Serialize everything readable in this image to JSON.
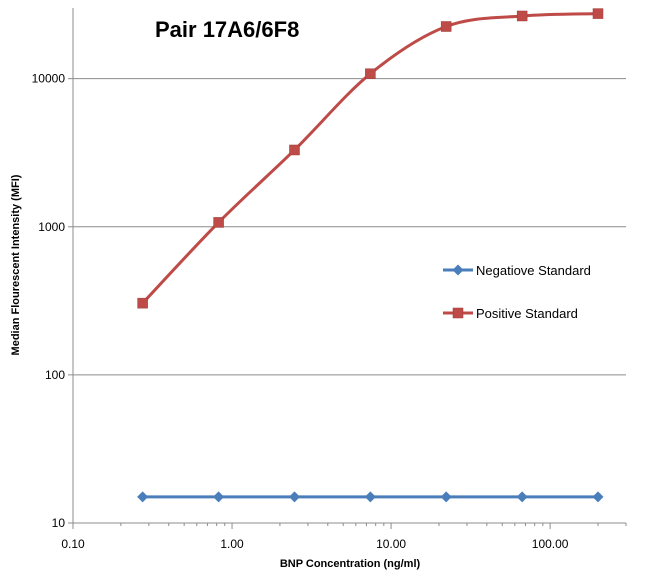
{
  "chart_data": {
    "type": "line",
    "title": "Pair 17A6/6F8",
    "xlabel": "BNP Concentration (ng/ml)",
    "ylabel": "Median Flourescent Intensity (MFI)",
    "x_scale": "log",
    "y_scale": "log",
    "xlim": [
      0.1,
      300
    ],
    "ylim": [
      10,
      30000
    ],
    "x_ticks": [
      0.1,
      1,
      10,
      100
    ],
    "x_tick_labels": [
      "0.10",
      "1.00",
      "10.00",
      "100.00"
    ],
    "y_ticks": [
      10,
      100,
      1000,
      10000
    ],
    "y_tick_labels": [
      "10",
      "100",
      "1000",
      "10000"
    ],
    "grid": "horizontal major gridlines",
    "legend_position": "right",
    "x": [
      0.274,
      0.823,
      2.47,
      7.41,
      22.2,
      66.7,
      200
    ],
    "series": [
      {
        "name": "Negatiove Standard",
        "color": "#4a7ebb",
        "marker": "diamond",
        "values": [
          15,
          15,
          15,
          15,
          15,
          15,
          15
        ]
      },
      {
        "name": "Positive Standard",
        "color": "#be4b48",
        "marker": "square",
        "values": [
          305,
          1070,
          3300,
          10800,
          22500,
          26500,
          27500
        ]
      }
    ]
  }
}
